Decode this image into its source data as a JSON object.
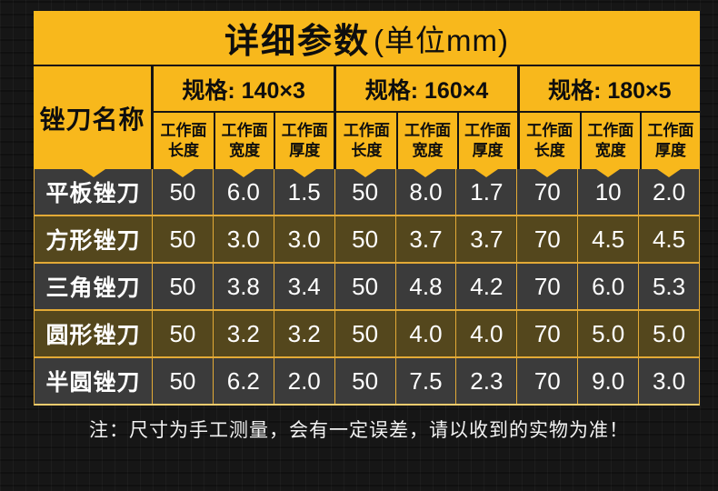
{
  "title": {
    "main": "详细参数",
    "unit": "(单位mm)"
  },
  "table": {
    "name_header": "锉刀名称",
    "groups": [
      {
        "label": "规格: 140×3"
      },
      {
        "label": "规格: 160×4"
      },
      {
        "label": "规格: 180×5"
      }
    ],
    "sub_header_top": "工作面",
    "sub_headers": [
      "长度",
      "宽度",
      "厚度"
    ],
    "rows": [
      {
        "name": "平板锉刀",
        "values": [
          "50",
          "6.0",
          "1.5",
          "50",
          "8.0",
          "1.7",
          "70",
          "10",
          "2.0"
        ]
      },
      {
        "name": "方形锉刀",
        "values": [
          "50",
          "3.0",
          "3.0",
          "50",
          "3.7",
          "3.7",
          "70",
          "4.5",
          "4.5"
        ]
      },
      {
        "name": "三角锉刀",
        "values": [
          "50",
          "3.8",
          "3.4",
          "50",
          "4.8",
          "4.2",
          "70",
          "6.0",
          "5.3"
        ]
      },
      {
        "name": "圆形锉刀",
        "values": [
          "50",
          "3.2",
          "3.2",
          "50",
          "4.0",
          "4.0",
          "70",
          "5.0",
          "5.0"
        ]
      },
      {
        "name": "半圆锉刀",
        "values": [
          "50",
          "6.2",
          "2.0",
          "50",
          "7.5",
          "2.3",
          "70",
          "9.0",
          "3.0"
        ]
      }
    ]
  },
  "note": "注：尺寸为手工测量，会有一定误差，请以收到的实物为准！",
  "colors": {
    "accent_yellow": "#F8B81C",
    "row_dark": "#3B3B3B",
    "row_olive": "#54471D",
    "border_yellow": "#E3AA36",
    "background": "#161616",
    "text_dark": "#0E0E0E",
    "text_light": "#FFFFFF"
  }
}
